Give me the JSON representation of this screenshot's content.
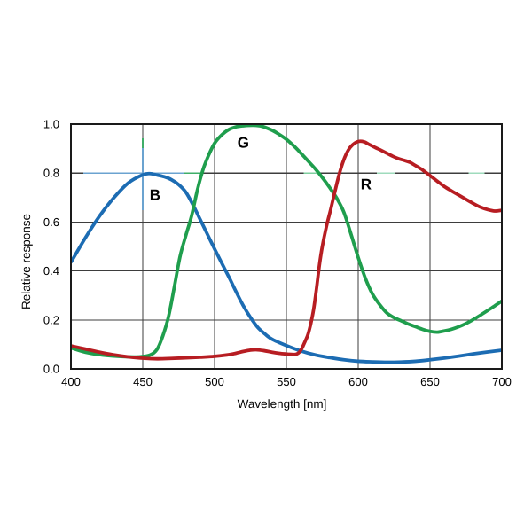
{
  "figure": {
    "description": "Relative spectral response curves of B, G and R channels versus wavelength",
    "background_color": "#ffffff",
    "grid_color": "#3d3d3d",
    "frame_color": "#1a1a1a",
    "text_color": "#000000"
  },
  "chart_data": {
    "type": "line",
    "title": "",
    "xlabel": "Wavelength [nm]",
    "ylabel": "Relative response",
    "xlim": [
      400,
      700
    ],
    "ylim": [
      0.0,
      1.0
    ],
    "xticks": [
      400,
      450,
      500,
      550,
      600,
      650,
      700
    ],
    "ytick_labels": [
      "0.0",
      "0.2",
      "0.4",
      "0.6",
      "0.8",
      "1.0"
    ],
    "ytick_values": [
      0.0,
      0.2,
      0.4,
      0.6,
      0.8,
      1.0
    ],
    "grid": true,
    "legend_position": "inline-labels",
    "series": [
      {
        "name": "B",
        "color": "#1c6cb3",
        "label": {
          "x": 458.6,
          "y": 0.712
        },
        "points": [
          [
            400,
            0.435
          ],
          [
            410,
            0.535
          ],
          [
            420,
            0.625
          ],
          [
            430,
            0.7
          ],
          [
            440,
            0.76
          ],
          [
            450,
            0.793
          ],
          [
            455,
            0.798
          ],
          [
            460,
            0.792
          ],
          [
            465,
            0.785
          ],
          [
            470,
            0.773
          ],
          [
            475,
            0.753
          ],
          [
            480,
            0.722
          ],
          [
            485,
            0.67
          ],
          [
            490,
            0.61
          ],
          [
            495,
            0.55
          ],
          [
            500,
            0.49
          ],
          [
            505,
            0.432
          ],
          [
            510,
            0.375
          ],
          [
            515,
            0.315
          ],
          [
            520,
            0.258
          ],
          [
            525,
            0.21
          ],
          [
            530,
            0.17
          ],
          [
            535,
            0.143
          ],
          [
            540,
            0.121
          ],
          [
            550,
            0.095
          ],
          [
            560,
            0.073
          ],
          [
            570,
            0.057
          ],
          [
            580,
            0.046
          ],
          [
            590,
            0.037
          ],
          [
            600,
            0.031
          ],
          [
            610,
            0.0285
          ],
          [
            620,
            0.027
          ],
          [
            630,
            0.028
          ],
          [
            640,
            0.031
          ],
          [
            650,
            0.037
          ],
          [
            660,
            0.044
          ],
          [
            670,
            0.052
          ],
          [
            680,
            0.061
          ],
          [
            690,
            0.069
          ],
          [
            700,
            0.076
          ]
        ]
      },
      {
        "name": "G",
        "color": "#1f9e4d",
        "label": {
          "x": 520,
          "y": 0.926
        },
        "points": [
          [
            400,
            0.086
          ],
          [
            410,
            0.068
          ],
          [
            420,
            0.058
          ],
          [
            430,
            0.052
          ],
          [
            440,
            0.049
          ],
          [
            447,
            0.049
          ],
          [
            455,
            0.056
          ],
          [
            460,
            0.08
          ],
          [
            464,
            0.135
          ],
          [
            468,
            0.215
          ],
          [
            472,
            0.335
          ],
          [
            476,
            0.46
          ],
          [
            480,
            0.545
          ],
          [
            484,
            0.625
          ],
          [
            488,
            0.73
          ],
          [
            492,
            0.815
          ],
          [
            496,
            0.875
          ],
          [
            500,
            0.922
          ],
          [
            505,
            0.956
          ],
          [
            510,
            0.978
          ],
          [
            515,
            0.989
          ],
          [
            520,
            0.993
          ],
          [
            527,
            0.995
          ],
          [
            533,
            0.991
          ],
          [
            540,
            0.975
          ],
          [
            545,
            0.958
          ],
          [
            550,
            0.938
          ],
          [
            555,
            0.912
          ],
          [
            560,
            0.882
          ],
          [
            565,
            0.85
          ],
          [
            570,
            0.818
          ],
          [
            575,
            0.782
          ],
          [
            580,
            0.742
          ],
          [
            585,
            0.698
          ],
          [
            590,
            0.64
          ],
          [
            595,
            0.55
          ],
          [
            600,
            0.455
          ],
          [
            605,
            0.37
          ],
          [
            610,
            0.305
          ],
          [
            615,
            0.262
          ],
          [
            620,
            0.228
          ],
          [
            625,
            0.209
          ],
          [
            630,
            0.196
          ],
          [
            635,
            0.183
          ],
          [
            640,
            0.172
          ],
          [
            645,
            0.161
          ],
          [
            650,
            0.153
          ],
          [
            655,
            0.15
          ],
          [
            660,
            0.155
          ],
          [
            665,
            0.162
          ],
          [
            670,
            0.172
          ],
          [
            675,
            0.185
          ],
          [
            680,
            0.201
          ],
          [
            685,
            0.219
          ],
          [
            690,
            0.238
          ],
          [
            695,
            0.257
          ],
          [
            700,
            0.277
          ]
        ]
      },
      {
        "name": "R",
        "color": "#b71d22",
        "label": {
          "x": 605.5,
          "y": 0.755
        },
        "points": [
          [
            400,
            0.094
          ],
          [
            410,
            0.081
          ],
          [
            420,
            0.068
          ],
          [
            430,
            0.057
          ],
          [
            440,
            0.049
          ],
          [
            450,
            0.0435
          ],
          [
            460,
            0.041
          ],
          [
            470,
            0.0425
          ],
          [
            480,
            0.045
          ],
          [
            490,
            0.0475
          ],
          [
            500,
            0.051
          ],
          [
            510,
            0.058
          ],
          [
            515,
            0.064
          ],
          [
            520,
            0.071
          ],
          [
            525,
            0.0765
          ],
          [
            529,
            0.078
          ],
          [
            534,
            0.0745
          ],
          [
            540,
            0.068
          ],
          [
            545,
            0.0635
          ],
          [
            550,
            0.0605
          ],
          [
            552,
            0.0595
          ],
          [
            555,
            0.059
          ],
          [
            557,
            0.06
          ],
          [
            559,
            0.068
          ],
          [
            561,
            0.086
          ],
          [
            563,
            0.112
          ],
          [
            565,
            0.14
          ],
          [
            567,
            0.185
          ],
          [
            569,
            0.245
          ],
          [
            571,
            0.33
          ],
          [
            573,
            0.425
          ],
          [
            575,
            0.5
          ],
          [
            578,
            0.585
          ],
          [
            581,
            0.655
          ],
          [
            584,
            0.73
          ],
          [
            587,
            0.8
          ],
          [
            590,
            0.855
          ],
          [
            593,
            0.893
          ],
          [
            596,
            0.915
          ],
          [
            600,
            0.929
          ],
          [
            604,
            0.928
          ],
          [
            608,
            0.916
          ],
          [
            612,
            0.904
          ],
          [
            616,
            0.893
          ],
          [
            620,
            0.881
          ],
          [
            624,
            0.869
          ],
          [
            628,
            0.859
          ],
          [
            632,
            0.852
          ],
          [
            636,
            0.844
          ],
          [
            640,
            0.83
          ],
          [
            645,
            0.812
          ],
          [
            650,
            0.79
          ],
          [
            655,
            0.767
          ],
          [
            660,
            0.745
          ],
          [
            665,
            0.727
          ],
          [
            670,
            0.71
          ],
          [
            675,
            0.693
          ],
          [
            680,
            0.676
          ],
          [
            685,
            0.661
          ],
          [
            690,
            0.651
          ],
          [
            695,
            0.645
          ],
          [
            700,
            0.648
          ]
        ]
      }
    ],
    "peak_marker": {
      "h_line_y": 0.8,
      "h_segments": [
        {
          "from": 408.6,
          "to": 478.4,
          "color": "#6ba3d0",
          "width": 1.7
        },
        {
          "from": 478.4,
          "to": 492.0,
          "color": "#3fae68",
          "width": 1.7
        },
        {
          "from": 562.0,
          "to": 571.5,
          "color": "#7fcf9f",
          "width": 1.5
        },
        {
          "from": 613.0,
          "to": 626.0,
          "color": "#9fdbbc",
          "width": 1.4
        },
        {
          "from": 677.0,
          "to": 688.0,
          "color": "#9fdbbc",
          "width": 1.4
        }
      ],
      "v_line_x": 450,
      "v_segments": [
        {
          "from": 0.902,
          "to": 0.942,
          "color": "#3fae68",
          "width": 1.7
        },
        {
          "from": 0.648,
          "to": 0.902,
          "color": "#6ba3d0",
          "width": 1.7
        }
      ]
    }
  }
}
